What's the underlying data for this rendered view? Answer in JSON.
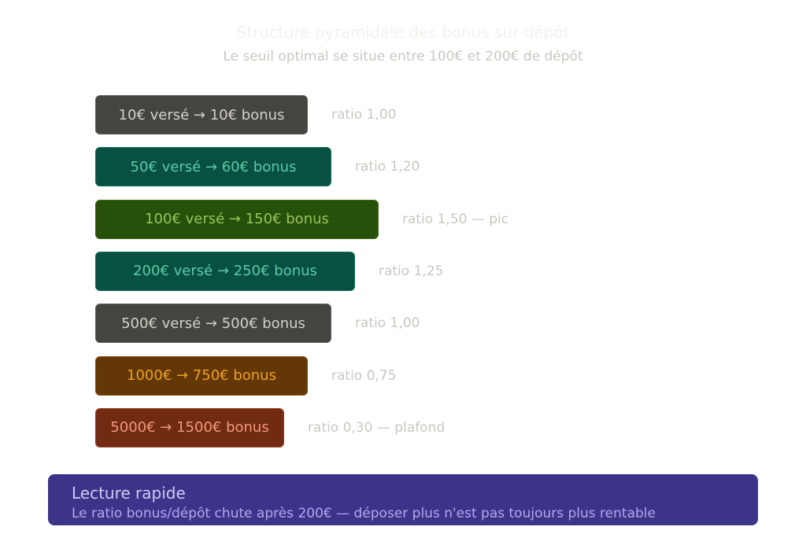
{
  "header": {
    "title": "Structure pyramidale des bonus sur dépôt",
    "subtitle": "Le seuil optimal se situe entre 100€ et 200€ de dépôt"
  },
  "rows": [
    {
      "label": "10€ versé → 10€ bonus",
      "note": "ratio 1,00"
    },
    {
      "label": "50€ versé → 60€ bonus",
      "note": "ratio 1,20"
    },
    {
      "label": "100€ versé → 150€ bonus",
      "note": "ratio 1,50 — pic"
    },
    {
      "label": "200€ versé → 250€ bonus",
      "note": "ratio 1,25"
    },
    {
      "label": "500€ versé → 500€ bonus",
      "note": "ratio 1,00"
    },
    {
      "label": "1000€ → 750€ bonus",
      "note": "ratio 0,75"
    },
    {
      "label": "5000€ → 1500€ bonus",
      "note": "ratio 0,30 — plafond"
    }
  ],
  "summary": {
    "title": "Lecture rapide",
    "text": "Le ratio bonus/dépôt chute après 200€ — déposer plus n'est pas toujours plus rentable"
  }
}
